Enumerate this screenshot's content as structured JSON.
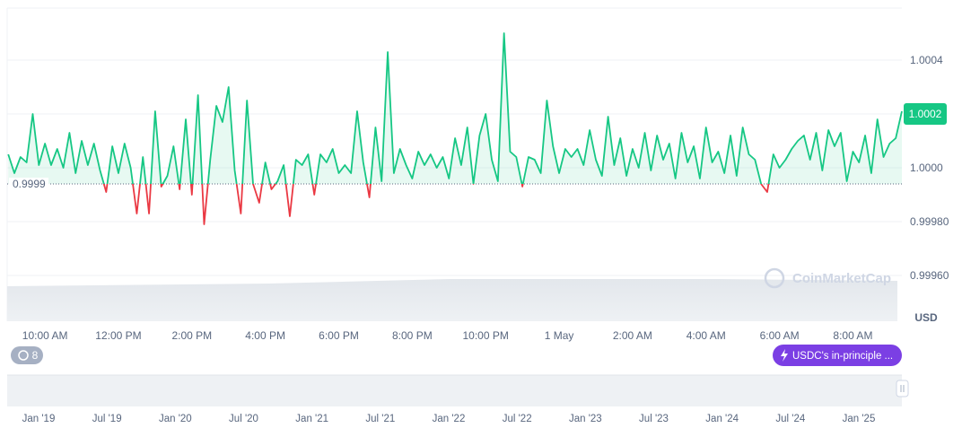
{
  "chart_data": {
    "type": "line",
    "color_up": "#16c784",
    "color_down": "#ea3943",
    "baseline": {
      "value": 0.99994,
      "label": "0.9999"
    },
    "current_price": 1.0002,
    "currency": "USD",
    "grid": true,
    "ylim": [
      0.99943,
      1.00059
    ],
    "yticks": [
      {
        "value": 0.9996,
        "label": "0.99960"
      },
      {
        "value": 0.9998,
        "label": "0.99980"
      },
      {
        "value": 1,
        "label": "1.0000"
      },
      1.0002,
      1.0004
    ],
    "categories": [
      null,
      null,
      null,
      null,
      null,
      null,
      "10:00 AM",
      null,
      null,
      null,
      null,
      null,
      null,
      null,
      null,
      null,
      null,
      null,
      "12:00 PM",
      null,
      null,
      null,
      null,
      null,
      null,
      null,
      null,
      null,
      null,
      null,
      "2:00 PM",
      null,
      null,
      null,
      null,
      null,
      null,
      null,
      null,
      null,
      null,
      null,
      "4:00 PM",
      null,
      null,
      null,
      null,
      null,
      null,
      null,
      null,
      null,
      null,
      null,
      "6:00 PM",
      null,
      null,
      null,
      null,
      null,
      null,
      null,
      null,
      null,
      null,
      null,
      "8:00 PM",
      null,
      null,
      null,
      null,
      null,
      null,
      null,
      null,
      null,
      null,
      null,
      "10:00 PM",
      null,
      null,
      null,
      null,
      null,
      null,
      null,
      null,
      null,
      null,
      null,
      "1 May",
      null,
      null,
      null,
      null,
      null,
      null,
      null,
      null,
      null,
      null,
      null,
      "2:00 AM",
      null,
      null,
      null,
      null,
      null,
      null,
      null,
      null,
      null,
      null,
      null,
      "4:00 AM",
      null,
      null,
      null,
      null,
      null,
      null,
      null,
      null,
      null,
      null,
      null,
      "6:00 AM",
      null,
      null,
      null,
      null,
      null,
      null,
      null,
      null,
      null,
      null,
      null,
      "8:00 AM",
      null,
      null,
      null,
      null,
      null,
      null,
      null,
      null
    ],
    "values": [
      1.00005,
      0.99998,
      1.00004,
      1.00002,
      1.0002,
      1.00001,
      1.00009,
      1.00001,
      1.00007,
      1,
      1.00013,
      0.99998,
      1.0001,
      1.00001,
      1.00009,
      0.99999,
      0.99991,
      1.00008,
      0.99998,
      1.00009,
      1,
      0.99983,
      1.00004,
      0.99983,
      1.00021,
      0.99993,
      0.99997,
      1.00008,
      0.99992,
      1.00018,
      0.9999,
      1.00027,
      0.99979,
      1.00003,
      1.00023,
      1.00017,
      1.0003,
      0.99999,
      0.99983,
      1.00025,
      0.99994,
      0.99987,
      1.00002,
      0.99992,
      0.99995,
      1.00001,
      0.99982,
      1.00003,
      1.00001,
      1.00005,
      0.9999,
      1.00005,
      1.00002,
      1.00007,
      0.99998,
      1.00001,
      0.99998,
      1.00021,
      1.00002,
      0.99989,
      1.00015,
      0.99995,
      1.00043,
      0.99998,
      1.00007,
      1.00001,
      0.99996,
      1.00006,
      1.00001,
      1.00005,
      1,
      1.00004,
      0.99996,
      1.00011,
      1.00001,
      1.00015,
      0.99994,
      1.00012,
      1.0002,
      1.00003,
      0.99995,
      1.0005,
      1.00006,
      1.00004,
      0.99993,
      1.00004,
      1.00003,
      0.99998,
      1.00025,
      1.00008,
      0.99998,
      1.00007,
      1.00004,
      1.00007,
      1.00001,
      1.00014,
      1.00003,
      0.99997,
      1.00019,
      1.00001,
      1.00011,
      0.99997,
      1.00007,
      1,
      1.00013,
      0.99999,
      1.00012,
      1.00003,
      1.00009,
      0.99996,
      1.00013,
      1.00002,
      1.00008,
      0.99996,
      1.00015,
      1.00002,
      1.00006,
      0.99998,
      1.00012,
      0.99997,
      1.00015,
      1.00005,
      1.00003,
      0.99994,
      0.99991,
      1.00005,
      1,
      1.00003,
      1.00007,
      1.0001,
      1.00012,
      1.00003,
      1.00013,
      0.99999,
      1.00014,
      1.00008,
      1.00013,
      0.99995,
      1.00006,
      1.00002,
      1.00012,
      0.99998,
      1.00018,
      1.00004,
      1.00009,
      1.00011,
      1.00021
    ],
    "navigator_labels": [
      "Jan '19",
      "Jul '19",
      "Jan '20",
      "Jul '20",
      "Jan '21",
      "Jul '21",
      "Jan '22",
      "Jul '22",
      "Jan '23",
      "Jul '23",
      "Jan '24",
      "Jul '24",
      "Jan '25"
    ]
  },
  "ui": {
    "watermark": "CoinMarketCap",
    "alert_count": 8,
    "news_button": "USDC's in-principle ..."
  }
}
